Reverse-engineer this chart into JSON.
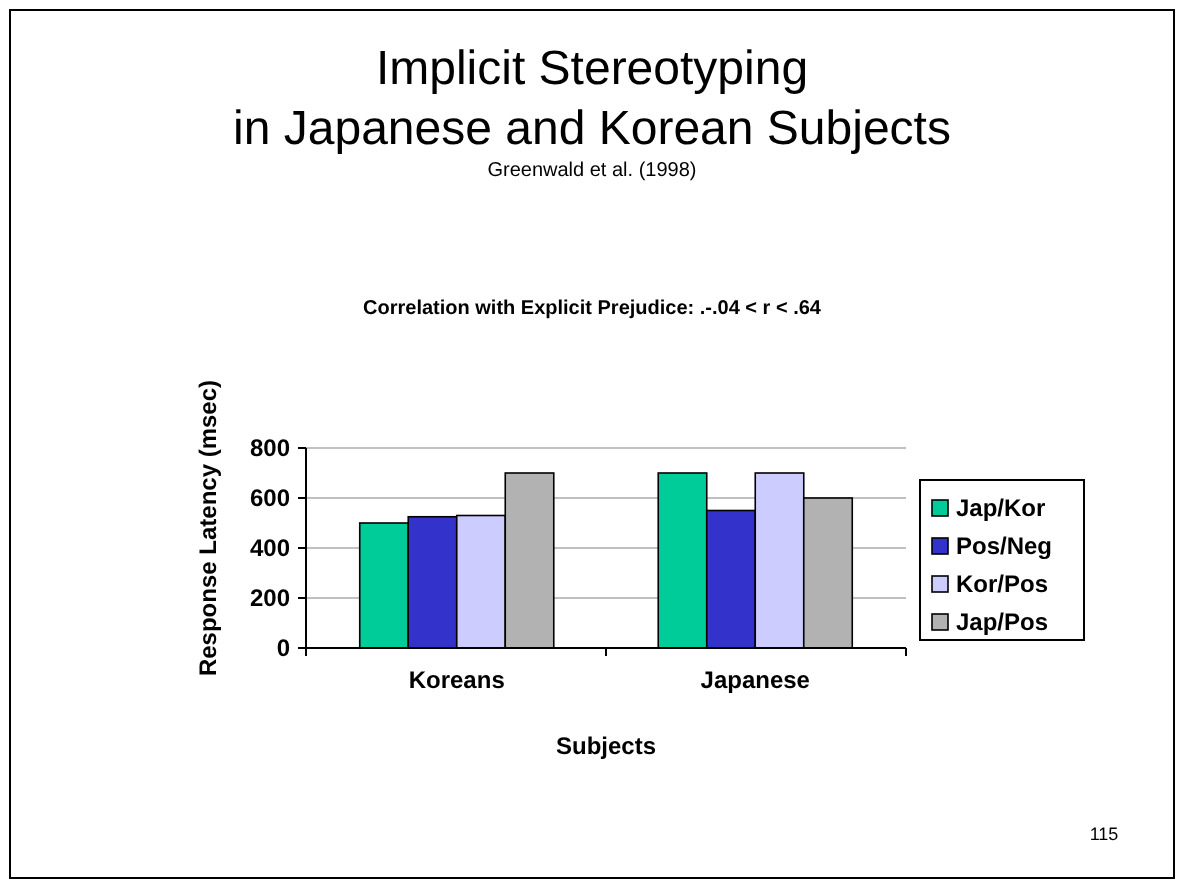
{
  "chart_data": {
    "type": "bar",
    "title": "Implicit Stereotyping\nin Japanese and Korean Subjects",
    "subtitle": "Greenwald et al. (1998)",
    "xlabel": "Subjects",
    "ylabel": "Response Latency (msec)",
    "annotations": [
      "Correlation with Explicit Prejudice: .-.04 < r < .64",
      "115"
    ],
    "categories": [
      "Koreans",
      "Japanese"
    ],
    "series": [
      {
        "name": "Jap/Kor",
        "color": "#00cc99",
        "values": [
          500,
          700
        ]
      },
      {
        "name": "Pos/Neg",
        "color": "#3333cc",
        "values": [
          525,
          550
        ]
      },
      {
        "name": "Kor/Pos",
        "color": "#ccccff",
        "values": [
          530,
          700
        ]
      },
      {
        "name": "Jap/Pos",
        "color": "#b2b2b2",
        "values": [
          700,
          600
        ]
      }
    ],
    "ylim": [
      0,
      800
    ],
    "yticks": [
      0,
      200,
      400,
      600,
      800
    ],
    "grid": "y",
    "legend": "right"
  }
}
